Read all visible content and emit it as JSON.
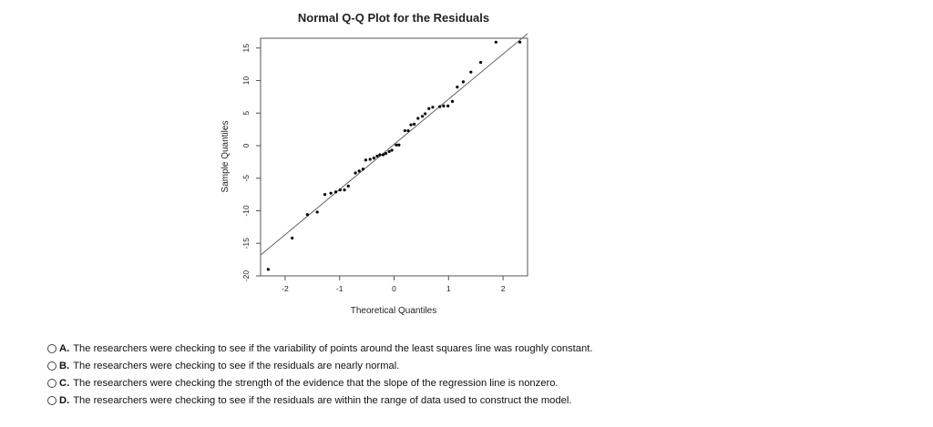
{
  "chart_data": {
    "type": "scatter",
    "title": "Normal Q-Q Plot for the Residuals",
    "xlabel": "Theoretical Quantiles",
    "ylabel": "Sample Quantiles",
    "xlim": [
      -2.45,
      2.45
    ],
    "ylim": [
      -20,
      16.5
    ],
    "xticks": [
      -2,
      -1,
      0,
      1,
      2
    ],
    "yticks": [
      -20,
      -15,
      -10,
      -5,
      0,
      5,
      10,
      15
    ],
    "reference_line": {
      "x1": -2.45,
      "y1": -16.8,
      "x2": 2.45,
      "y2": 17.2
    },
    "points": {
      "x": [
        -2.31,
        -1.87,
        -1.59,
        -1.41,
        -1.27,
        -1.16,
        -1.07,
        -0.99,
        -0.91,
        -0.84,
        -0.71,
        -0.64,
        -0.57,
        -0.52,
        -0.44,
        -0.37,
        -0.31,
        -0.26,
        -0.2,
        -0.15,
        -0.09,
        -0.04,
        0.04,
        0.09,
        0.2,
        0.26,
        0.31,
        0.37,
        0.44,
        0.52,
        0.57,
        0.64,
        0.71,
        0.84,
        0.91,
        0.99,
        1.07,
        1.16,
        1.27,
        1.41,
        1.59,
        1.87,
        2.31
      ],
      "y": [
        -19.0,
        -14.2,
        -10.6,
        -10.2,
        -7.5,
        -7.3,
        -7.1,
        -6.8,
        -6.8,
        -6.2,
        -4.2,
        -3.9,
        -3.6,
        -2.2,
        -2.1,
        -1.9,
        -1.6,
        -1.4,
        -1.4,
        -1.2,
        -0.9,
        -0.7,
        0.1,
        0.1,
        2.3,
        2.3,
        3.2,
        3.3,
        4.2,
        4.5,
        4.9,
        5.7,
        5.9,
        6.0,
        6.1,
        6.1,
        6.8,
        9.0,
        9.8,
        11.3,
        12.8,
        15.9,
        15.9
      ]
    }
  },
  "options": [
    {
      "letter": "A.",
      "text": "The researchers were checking to see if the variability of points around the least squares line was roughly constant."
    },
    {
      "letter": "B.",
      "text": "The researchers were checking to see if the residuals are nearly normal."
    },
    {
      "letter": "C.",
      "text": "The researchers were checking the strength of the evidence that the slope of the regression line is nonzero."
    },
    {
      "letter": "D.",
      "text": "The researchers were checking to see if the residuals are within the range of data used to construct the model."
    }
  ]
}
